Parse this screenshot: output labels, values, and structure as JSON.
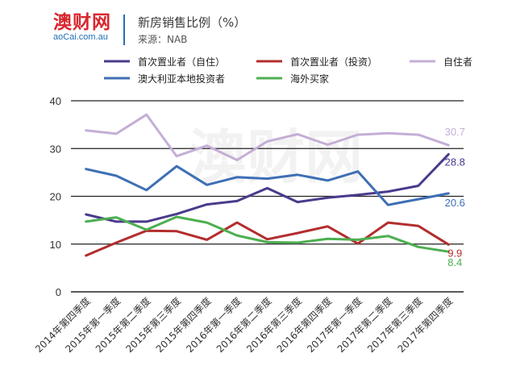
{
  "header": {
    "logo_main": "澳财网",
    "logo_sub": "aoCai.com.au",
    "title": "新房销售比例（%）",
    "source": "来源：NAB"
  },
  "watermark": "澳财网",
  "chart_data": {
    "type": "line",
    "ylim": [
      0,
      40
    ],
    "yticks": [
      0,
      10,
      20,
      30,
      40
    ],
    "grid": "horizontal",
    "legend_position": "top",
    "categories": [
      "2014年第四季度",
      "2015年第一季度",
      "2015年第二季度",
      "2015年第三季度",
      "2015年第四季度",
      "2016年第一季度",
      "2016年第二季度",
      "2016年第三季度",
      "2016年第四季度",
      "2017年第一季度",
      "2017年第二季度",
      "2017年第三季度",
      "2017年第四季度"
    ],
    "series": [
      {
        "name": "首次置业者（自住）",
        "color": "#4b3a8c",
        "values": [
          16.2,
          14.7,
          14.7,
          16.3,
          18.3,
          19.0,
          21.7,
          18.8,
          19.7,
          20.3,
          21.0,
          22.2,
          28.8
        ],
        "end_label": "28.8"
      },
      {
        "name": "首次置业者（投资）",
        "color": "#b32d2e",
        "values": [
          7.6,
          10.3,
          12.8,
          12.7,
          10.9,
          14.5,
          11.0,
          12.3,
          13.7,
          10.1,
          14.5,
          13.8,
          9.9
        ],
        "end_label": "9.9"
      },
      {
        "name": "自住者",
        "color": "#c4aed6",
        "values": [
          33.8,
          33.1,
          37.1,
          28.4,
          30.6,
          27.6,
          31.5,
          33.0,
          30.8,
          32.9,
          33.2,
          32.9,
          30.7
        ],
        "end_label": "30.7"
      },
      {
        "name": "澳大利亚本地投资者",
        "color": "#3e6fb5",
        "values": [
          25.7,
          24.3,
          21.3,
          26.3,
          22.4,
          24.0,
          23.7,
          24.5,
          23.3,
          25.2,
          18.2,
          19.4,
          20.6
        ],
        "end_label": "20.6"
      },
      {
        "name": "海外买家",
        "color": "#4caf50",
        "values": [
          14.7,
          15.6,
          13.0,
          15.7,
          14.5,
          11.8,
          10.4,
          10.3,
          11.1,
          10.9,
          11.7,
          9.4,
          8.4
        ],
        "end_label": "8.4"
      }
    ]
  }
}
